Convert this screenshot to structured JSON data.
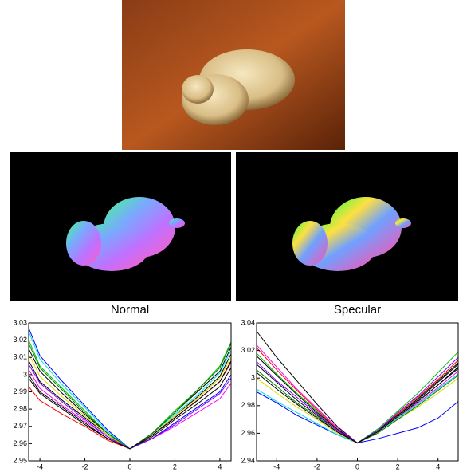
{
  "chart_data": [
    {
      "type": "line",
      "title": "Normal",
      "x": [
        -4.5,
        -4,
        -3,
        -2,
        -1,
        0,
        1,
        2,
        3,
        4,
        4.5
      ],
      "xlim": [
        -4.5,
        4.5
      ],
      "xticks": [
        -4,
        -2,
        0,
        2,
        4
      ],
      "ylim": [
        2.95,
        3.03
      ],
      "yticks": [
        2.95,
        2.96,
        2.97,
        2.98,
        2.99,
        3,
        3.01,
        3.02,
        3.03
      ],
      "series": [
        {
          "color": "#0000ff",
          "values": [
            3.027,
            3.011,
            2.996,
            2.982,
            2.968,
            2.957,
            2.963,
            2.972,
            2.981,
            2.99,
            3.0
          ]
        },
        {
          "color": "#00e0e0",
          "values": [
            3.025,
            3.009,
            2.994,
            2.981,
            2.967,
            2.957,
            2.966,
            2.977,
            2.988,
            3.001,
            3.014
          ]
        },
        {
          "color": "#00c000",
          "values": [
            3.02,
            3.005,
            2.992,
            2.979,
            2.966,
            2.957,
            2.966,
            2.979,
            2.991,
            3.005,
            3.019
          ]
        },
        {
          "color": "#ff0000",
          "values": [
            2.993,
            2.985,
            2.977,
            2.97,
            2.962,
            2.957,
            2.965,
            2.975,
            2.985,
            2.996,
            3.007
          ]
        },
        {
          "color": "#ff00ff",
          "values": [
            3.003,
            2.992,
            2.982,
            2.973,
            2.964,
            2.957,
            2.963,
            2.97,
            2.978,
            2.986,
            2.995
          ]
        },
        {
          "color": "#000000",
          "values": [
            3.015,
            3.002,
            2.989,
            2.977,
            2.966,
            2.957,
            2.965,
            2.976,
            2.987,
            2.999,
            3.012
          ]
        },
        {
          "color": "#000000",
          "values": [
            3.008,
            2.996,
            2.985,
            2.975,
            2.965,
            2.957,
            2.966,
            2.978,
            2.99,
            3.002,
            3.016
          ]
        },
        {
          "color": "#000000",
          "values": [
            3.0,
            2.99,
            2.981,
            2.972,
            2.963,
            2.957,
            2.964,
            2.974,
            2.983,
            2.993,
            3.004
          ]
        },
        {
          "color": "#d8d800",
          "values": [
            3.012,
            2.999,
            2.987,
            2.976,
            2.965,
            2.957,
            2.965,
            2.976,
            2.986,
            2.998,
            3.01
          ]
        },
        {
          "color": "#008000",
          "values": [
            3.018,
            3.004,
            2.991,
            2.978,
            2.966,
            2.957,
            2.966,
            2.978,
            2.991,
            3.004,
            3.018
          ]
        },
        {
          "color": "#8000ff",
          "values": [
            3.006,
            2.995,
            2.984,
            2.974,
            2.964,
            2.957,
            2.963,
            2.971,
            2.98,
            2.989,
            2.998
          ]
        },
        {
          "color": "#000000",
          "values": [
            2.998,
            2.989,
            2.98,
            2.971,
            2.963,
            2.957,
            2.965,
            2.975,
            2.985,
            2.996,
            3.008
          ]
        }
      ]
    },
    {
      "type": "line",
      "title": "Specular",
      "x": [
        -5,
        -4,
        -3,
        -2,
        -1,
        0,
        1,
        2,
        3,
        4,
        5
      ],
      "xlim": [
        -5,
        5
      ],
      "xticks": [
        -4,
        -2,
        0,
        2,
        4
      ],
      "ylim": [
        2.94,
        3.04
      ],
      "yticks": [
        2.94,
        2.96,
        2.98,
        3,
        3.02,
        3.04
      ],
      "series": [
        {
          "color": "#000000",
          "values": [
            3.034,
            3.015,
            2.998,
            2.981,
            2.965,
            2.953,
            2.962,
            2.973,
            2.984,
            2.997,
            3.01
          ]
        },
        {
          "color": "#0000ff",
          "values": [
            2.99,
            2.982,
            2.973,
            2.966,
            2.959,
            2.953,
            2.956,
            2.96,
            2.964,
            2.971,
            2.983
          ]
        },
        {
          "color": "#00c000",
          "values": [
            3.018,
            3.003,
            2.989,
            2.976,
            2.963,
            2.953,
            2.963,
            2.976,
            2.989,
            3.004,
            3.019
          ]
        },
        {
          "color": "#ff0000",
          "values": [
            3.022,
            3.006,
            2.991,
            2.977,
            2.963,
            2.953,
            2.962,
            2.974,
            2.986,
            2.999,
            3.013
          ]
        },
        {
          "color": "#ff00ff",
          "values": [
            3.024,
            3.008,
            2.992,
            2.978,
            2.964,
            2.953,
            2.961,
            2.971,
            2.982,
            2.993,
            3.005
          ]
        },
        {
          "color": "#00e0e0",
          "values": [
            2.992,
            2.983,
            2.975,
            2.967,
            2.959,
            2.953,
            2.961,
            2.971,
            2.981,
            2.992,
            3.003
          ]
        },
        {
          "color": "#d8d800",
          "values": [
            3.0,
            2.989,
            2.979,
            2.97,
            2.96,
            2.953,
            2.96,
            2.97,
            2.979,
            2.989,
            3.0
          ]
        },
        {
          "color": "#000000",
          "values": [
            3.016,
            3.002,
            2.988,
            2.975,
            2.963,
            2.953,
            2.962,
            2.973,
            2.985,
            2.998,
            3.011
          ]
        },
        {
          "color": "#000000",
          "values": [
            3.01,
            2.997,
            2.984,
            2.973,
            2.962,
            2.953,
            2.961,
            2.972,
            2.983,
            2.995,
            3.008
          ]
        },
        {
          "color": "#008000",
          "values": [
            3.006,
            2.994,
            2.982,
            2.972,
            2.961,
            2.953,
            2.96,
            2.97,
            2.98,
            2.991,
            3.002
          ]
        },
        {
          "color": "#8000ff",
          "values": [
            3.012,
            2.998,
            2.986,
            2.974,
            2.962,
            2.953,
            2.962,
            2.975,
            2.987,
            3.001,
            3.015
          ]
        },
        {
          "color": "#000000",
          "values": [
            3.004,
            2.992,
            2.981,
            2.971,
            2.961,
            2.953,
            2.961,
            2.972,
            2.983,
            2.995,
            3.007
          ]
        }
      ]
    }
  ]
}
